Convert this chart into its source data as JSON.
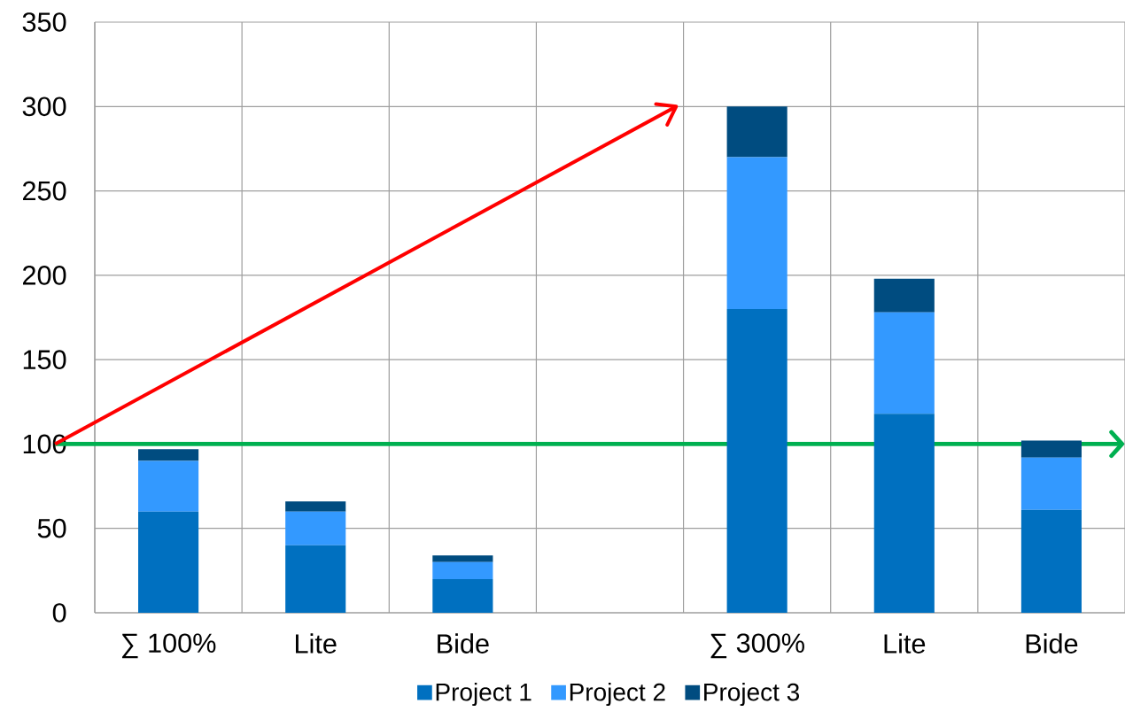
{
  "chart_data": {
    "type": "bar",
    "stacked": true,
    "categories": [
      "∑ 100%",
      "Lite",
      "Bide",
      null,
      "∑ 300%",
      "Lite",
      "Bide"
    ],
    "series": [
      {
        "name": "Project 1",
        "color": "#0070c0",
        "values": [
          60,
          40,
          20,
          null,
          180,
          118,
          61
        ]
      },
      {
        "name": "Project 2",
        "color": "#3399ff",
        "values": [
          30,
          20,
          10,
          null,
          90,
          60,
          31
        ]
      },
      {
        "name": "Project 3",
        "color": "#004c80",
        "values": [
          7,
          6,
          4,
          null,
          30,
          20,
          10
        ]
      }
    ],
    "ylim": [
      0,
      350
    ],
    "yticks": [
      0,
      50,
      100,
      150,
      200,
      250,
      300,
      350
    ],
    "grid": true,
    "legend": "bottom",
    "ref_lines": [
      {
        "axis": "y",
        "value": 100,
        "color": "#00b050"
      }
    ]
  }
}
